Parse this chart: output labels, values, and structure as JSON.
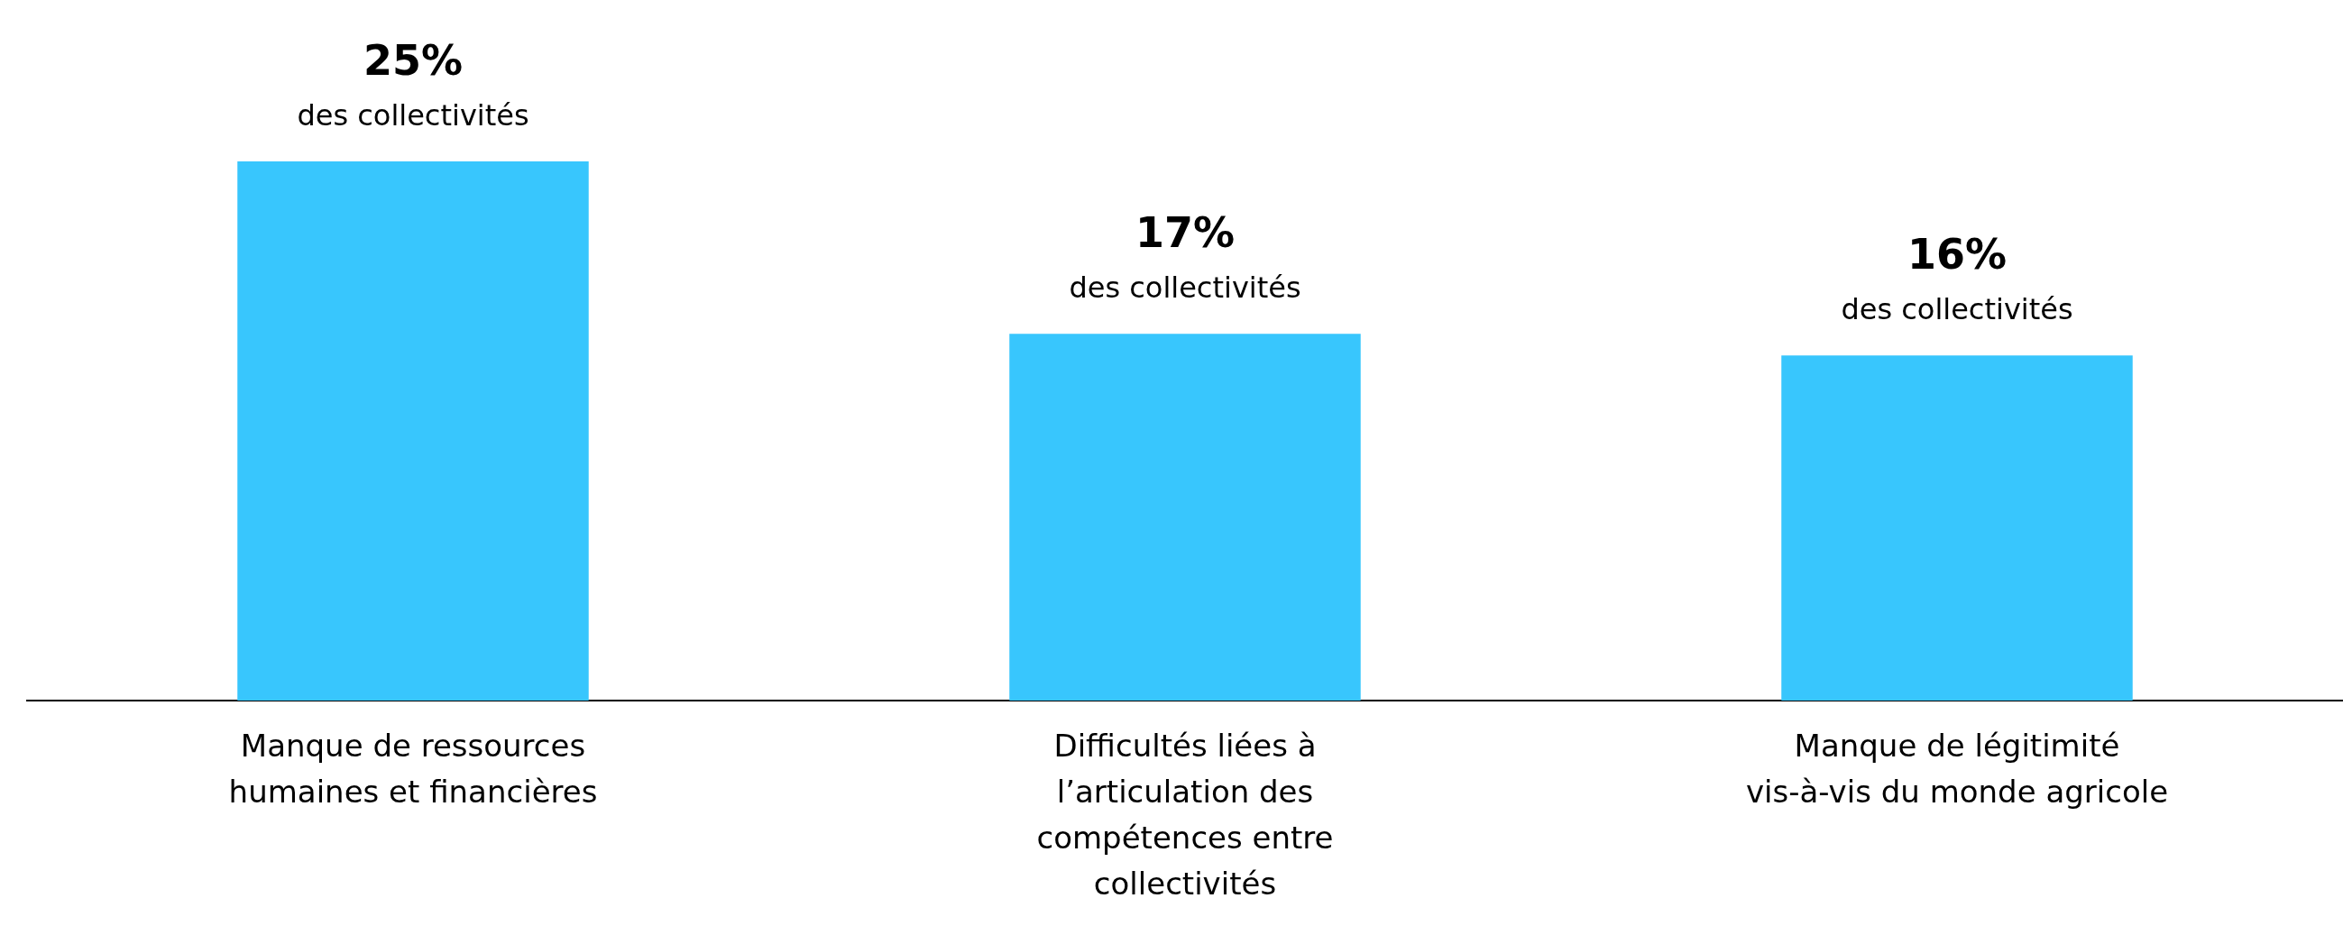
{
  "chart_data": {
    "type": "bar",
    "categories": [
      "Manque de ressources humaines et financières",
      "Difficultés liées à l’articulation des compétences entre collectivités",
      "Manque de légitimité vis-à-vis du monde agricole"
    ],
    "values": [
      25,
      17,
      16
    ],
    "value_labels": [
      "25%\ndes collectivités",
      "17%\ndes collectivités",
      "16%\ndes collectivités"
    ],
    "color": "#38c6fd",
    "grid": false,
    "legend": false,
    "tick_labels": "x"
  }
}
